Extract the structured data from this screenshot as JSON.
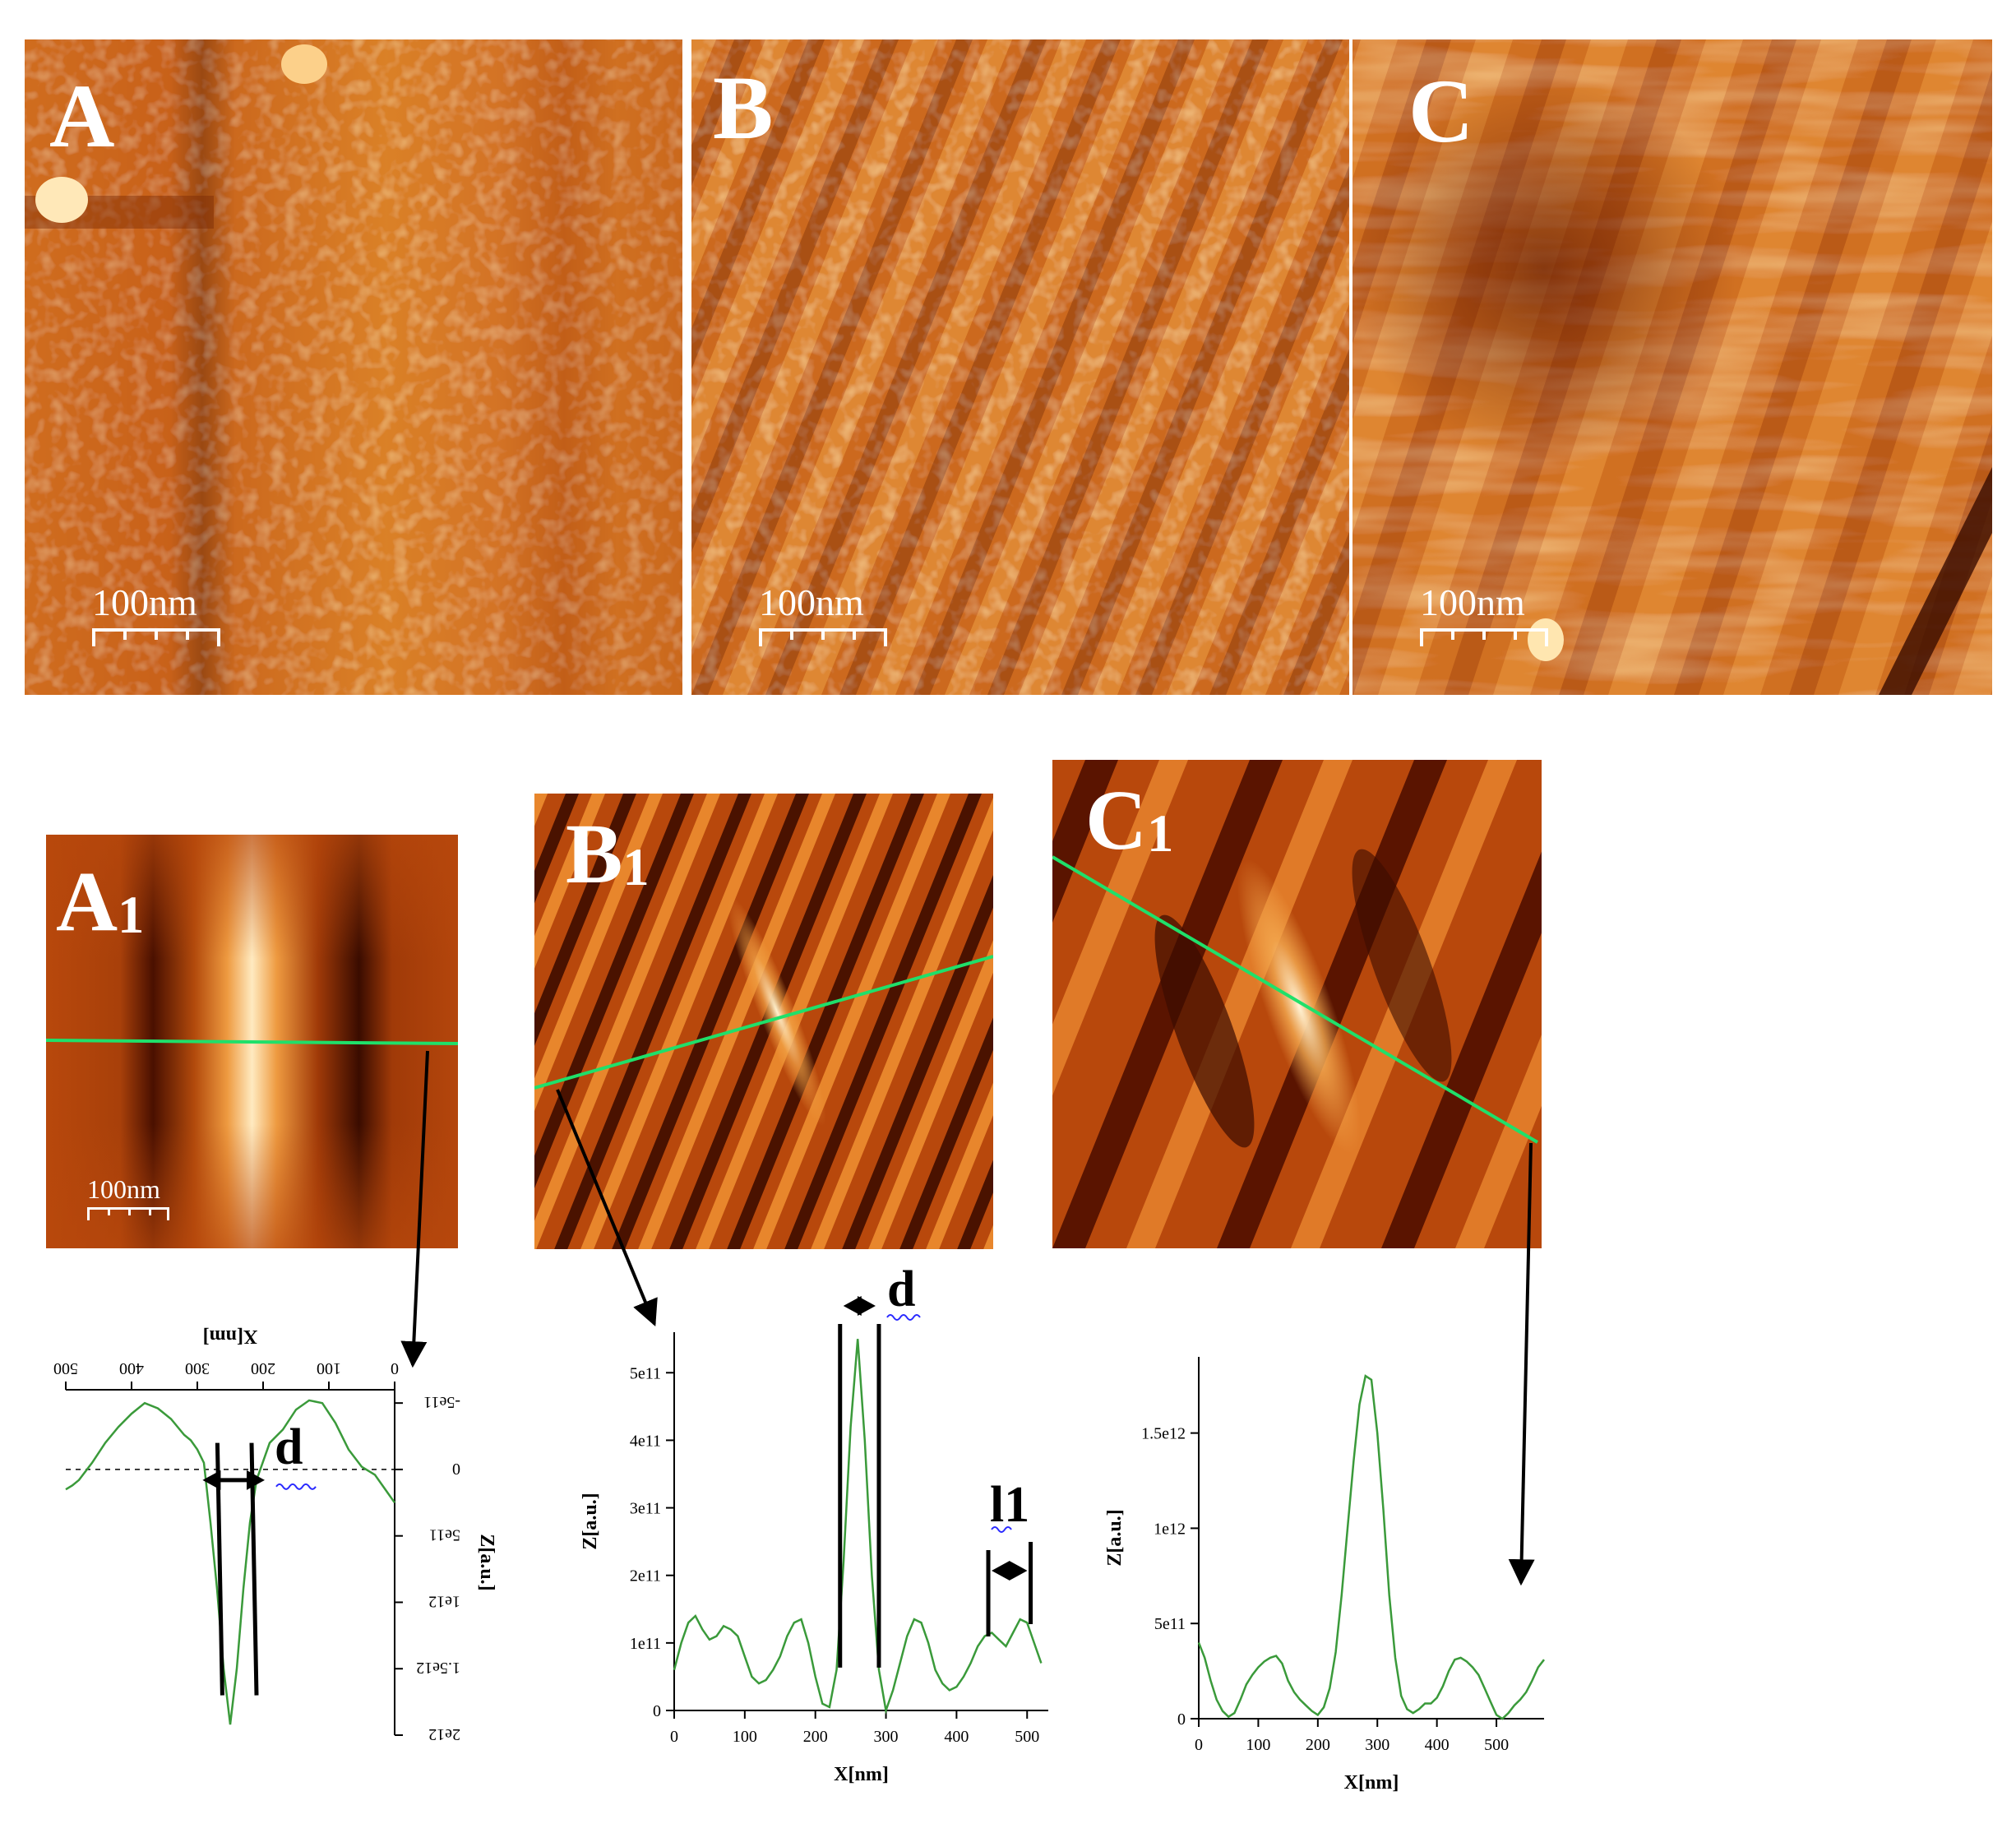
{
  "panels": {
    "A": {
      "label": "A",
      "scale": "100nm"
    },
    "B": {
      "label": "B",
      "scale": "100nm"
    },
    "C": {
      "label": "C",
      "scale": "100nm"
    },
    "A1": {
      "label": "A",
      "sub": "1",
      "scale": "100nm"
    },
    "B1": {
      "label": "B",
      "sub": "1"
    },
    "C1": {
      "label": "C",
      "sub": "1"
    }
  },
  "colors": {
    "afm_dark": "#5a1500",
    "afm_mid": "#c2550f",
    "afm_light": "#ffe6b0",
    "profile_line": "#1fe06a",
    "trace": "#3a9a3a"
  },
  "chart_data": [
    {
      "type": "line",
      "id": "profile-A1",
      "xlabel": "X[nm]",
      "ylabel": "Z[a.u.]",
      "orientation": "rotated-180",
      "xlim": [
        0,
        500
      ],
      "ylim": [
        -600000000000.0,
        2000000000000.0
      ],
      "xticks": [
        0,
        100,
        200,
        300,
        400,
        500
      ],
      "xtick_labels": [
        "0",
        "100",
        "200",
        "300",
        "400",
        "500"
      ],
      "yticks": [
        -500000000000.0,
        0,
        500000000000.0,
        1000000000000.0,
        1500000000000.0,
        2000000000000.0
      ],
      "ytick_labels": [
        "-5e11",
        "0",
        "5e11",
        "1e12",
        "1.5e12",
        "2e12"
      ],
      "annotations": [
        "d"
      ],
      "x": [
        0,
        10,
        30,
        50,
        70,
        90,
        110,
        130,
        150,
        170,
        190,
        210,
        220,
        230,
        240,
        250,
        260,
        270,
        280,
        290,
        300,
        310,
        320,
        340,
        360,
        380,
        400,
        420,
        440,
        460,
        480,
        490,
        500
      ],
      "y": [
        250000000000.0,
        180000000000.0,
        40000000000.0,
        -20000000000.0,
        -150000000000.0,
        -350000000000.0,
        -500000000000.0,
        -520000000000.0,
        -450000000000.0,
        -300000000000.0,
        -200000000000.0,
        80000000000.0,
        400000000000.0,
        900000000000.0,
        1500000000000.0,
        1920000000000.0,
        1500000000000.0,
        900000000000.0,
        400000000000.0,
        -50000000000.0,
        -150000000000.0,
        -220000000000.0,
        -260000000000.0,
        -380000000000.0,
        -460000000000.0,
        -500000000000.0,
        -420000000000.0,
        -320000000000.0,
        -200000000000.0,
        -50000000000.0,
        80000000000.0,
        120000000000.0,
        150000000000.0
      ]
    },
    {
      "type": "line",
      "id": "profile-B1",
      "xlabel": "X[nm]",
      "ylabel": "Z[a.u.]",
      "xlim": [
        0,
        530
      ],
      "ylim": [
        0,
        560000000000.0
      ],
      "xticks": [
        0,
        100,
        200,
        300,
        400,
        500
      ],
      "xtick_labels": [
        "0",
        "100",
        "200",
        "300",
        "400",
        "500"
      ],
      "yticks": [
        0,
        100000000000.0,
        200000000000.0,
        300000000000.0,
        400000000000.0,
        500000000000.0
      ],
      "ytick_labels": [
        "0",
        "1e11",
        "2e11",
        "3e11",
        "4e11",
        "5e11"
      ],
      "annotations": [
        "d",
        "l1"
      ],
      "x": [
        0,
        10,
        20,
        30,
        40,
        50,
        60,
        70,
        80,
        90,
        100,
        110,
        120,
        130,
        140,
        150,
        160,
        170,
        180,
        190,
        200,
        210,
        220,
        230,
        240,
        250,
        260,
        270,
        280,
        290,
        300,
        310,
        320,
        330,
        340,
        350,
        360,
        370,
        380,
        390,
        400,
        410,
        420,
        430,
        440,
        450,
        460,
        470,
        480,
        490,
        500,
        510,
        520
      ],
      "y": [
        60000000000.0,
        100000000000.0,
        130000000000.0,
        140000000000.0,
        120000000000.0,
        105000000000.0,
        110000000000.0,
        125000000000.0,
        120000000000.0,
        110000000000.0,
        80000000000.0,
        50000000000.0,
        40000000000.0,
        45000000000.0,
        60000000000.0,
        80000000000.0,
        110000000000.0,
        130000000000.0,
        135000000000.0,
        100000000000.0,
        50000000000.0,
        10000000000.0,
        5000000000.0,
        60000000000.0,
        220000000000.0,
        420000000000.0,
        550000000000.0,
        400000000000.0,
        200000000000.0,
        60000000000.0,
        0.0,
        30000000000.0,
        70000000000.0,
        110000000000.0,
        135000000000.0,
        130000000000.0,
        100000000000.0,
        60000000000.0,
        40000000000.0,
        30000000000.0,
        35000000000.0,
        50000000000.0,
        70000000000.0,
        95000000000.0,
        110000000000.0,
        115000000000.0,
        105000000000.0,
        95000000000.0,
        115000000000.0,
        135000000000.0,
        130000000000.0,
        100000000000.0,
        70000000000.0
      ]
    },
    {
      "type": "line",
      "id": "profile-C1",
      "xlabel": "X[nm]",
      "ylabel": "Z[a.u.]",
      "xlim": [
        0,
        580
      ],
      "ylim": [
        0,
        1900000000000.0
      ],
      "xticks": [
        0,
        100,
        200,
        300,
        400,
        500
      ],
      "xtick_labels": [
        "0",
        "100",
        "200",
        "300",
        "400",
        "500"
      ],
      "yticks": [
        0,
        500000000000.0,
        1000000000000.0,
        1500000000000.0
      ],
      "ytick_labels": [
        "0",
        "5e11",
        "1e12",
        "1.5e12"
      ],
      "x": [
        0,
        10,
        20,
        30,
        40,
        50,
        60,
        70,
        80,
        90,
        100,
        110,
        120,
        130,
        140,
        150,
        160,
        170,
        180,
        190,
        200,
        210,
        220,
        230,
        240,
        250,
        260,
        270,
        280,
        290,
        300,
        310,
        320,
        330,
        340,
        350,
        360,
        370,
        380,
        390,
        400,
        410,
        420,
        430,
        440,
        450,
        460,
        470,
        480,
        490,
        500,
        510,
        520,
        530,
        540,
        550,
        560,
        570,
        580
      ],
      "y": [
        400000000000.0,
        320000000000.0,
        200000000000.0,
        100000000000.0,
        40000000000.0,
        10000000000.0,
        30000000000.0,
        100000000000.0,
        180000000000.0,
        230000000000.0,
        270000000000.0,
        300000000000.0,
        320000000000.0,
        330000000000.0,
        290000000000.0,
        200000000000.0,
        140000000000.0,
        100000000000.0,
        70000000000.0,
        40000000000.0,
        20000000000.0,
        60000000000.0,
        160000000000.0,
        350000000000.0,
        650000000000.0,
        1000000000000.0,
        1350000000000.0,
        1650000000000.0,
        1800000000000.0,
        1780000000000.0,
        1500000000000.0,
        1100000000000.0,
        650000000000.0,
        320000000000.0,
        120000000000.0,
        50000000000.0,
        30000000000.0,
        50000000000.0,
        80000000000.0,
        80000000000.0,
        110000000000.0,
        170000000000.0,
        250000000000.0,
        310000000000.0,
        320000000000.0,
        300000000000.0,
        270000000000.0,
        230000000000.0,
        160000000000.0,
        90000000000.0,
        20000000000.0,
        0.0,
        30000000000.0,
        70000000000.0,
        100000000000.0,
        140000000000.0,
        200000000000.0,
        270000000000.0,
        310000000000.0
      ]
    }
  ]
}
